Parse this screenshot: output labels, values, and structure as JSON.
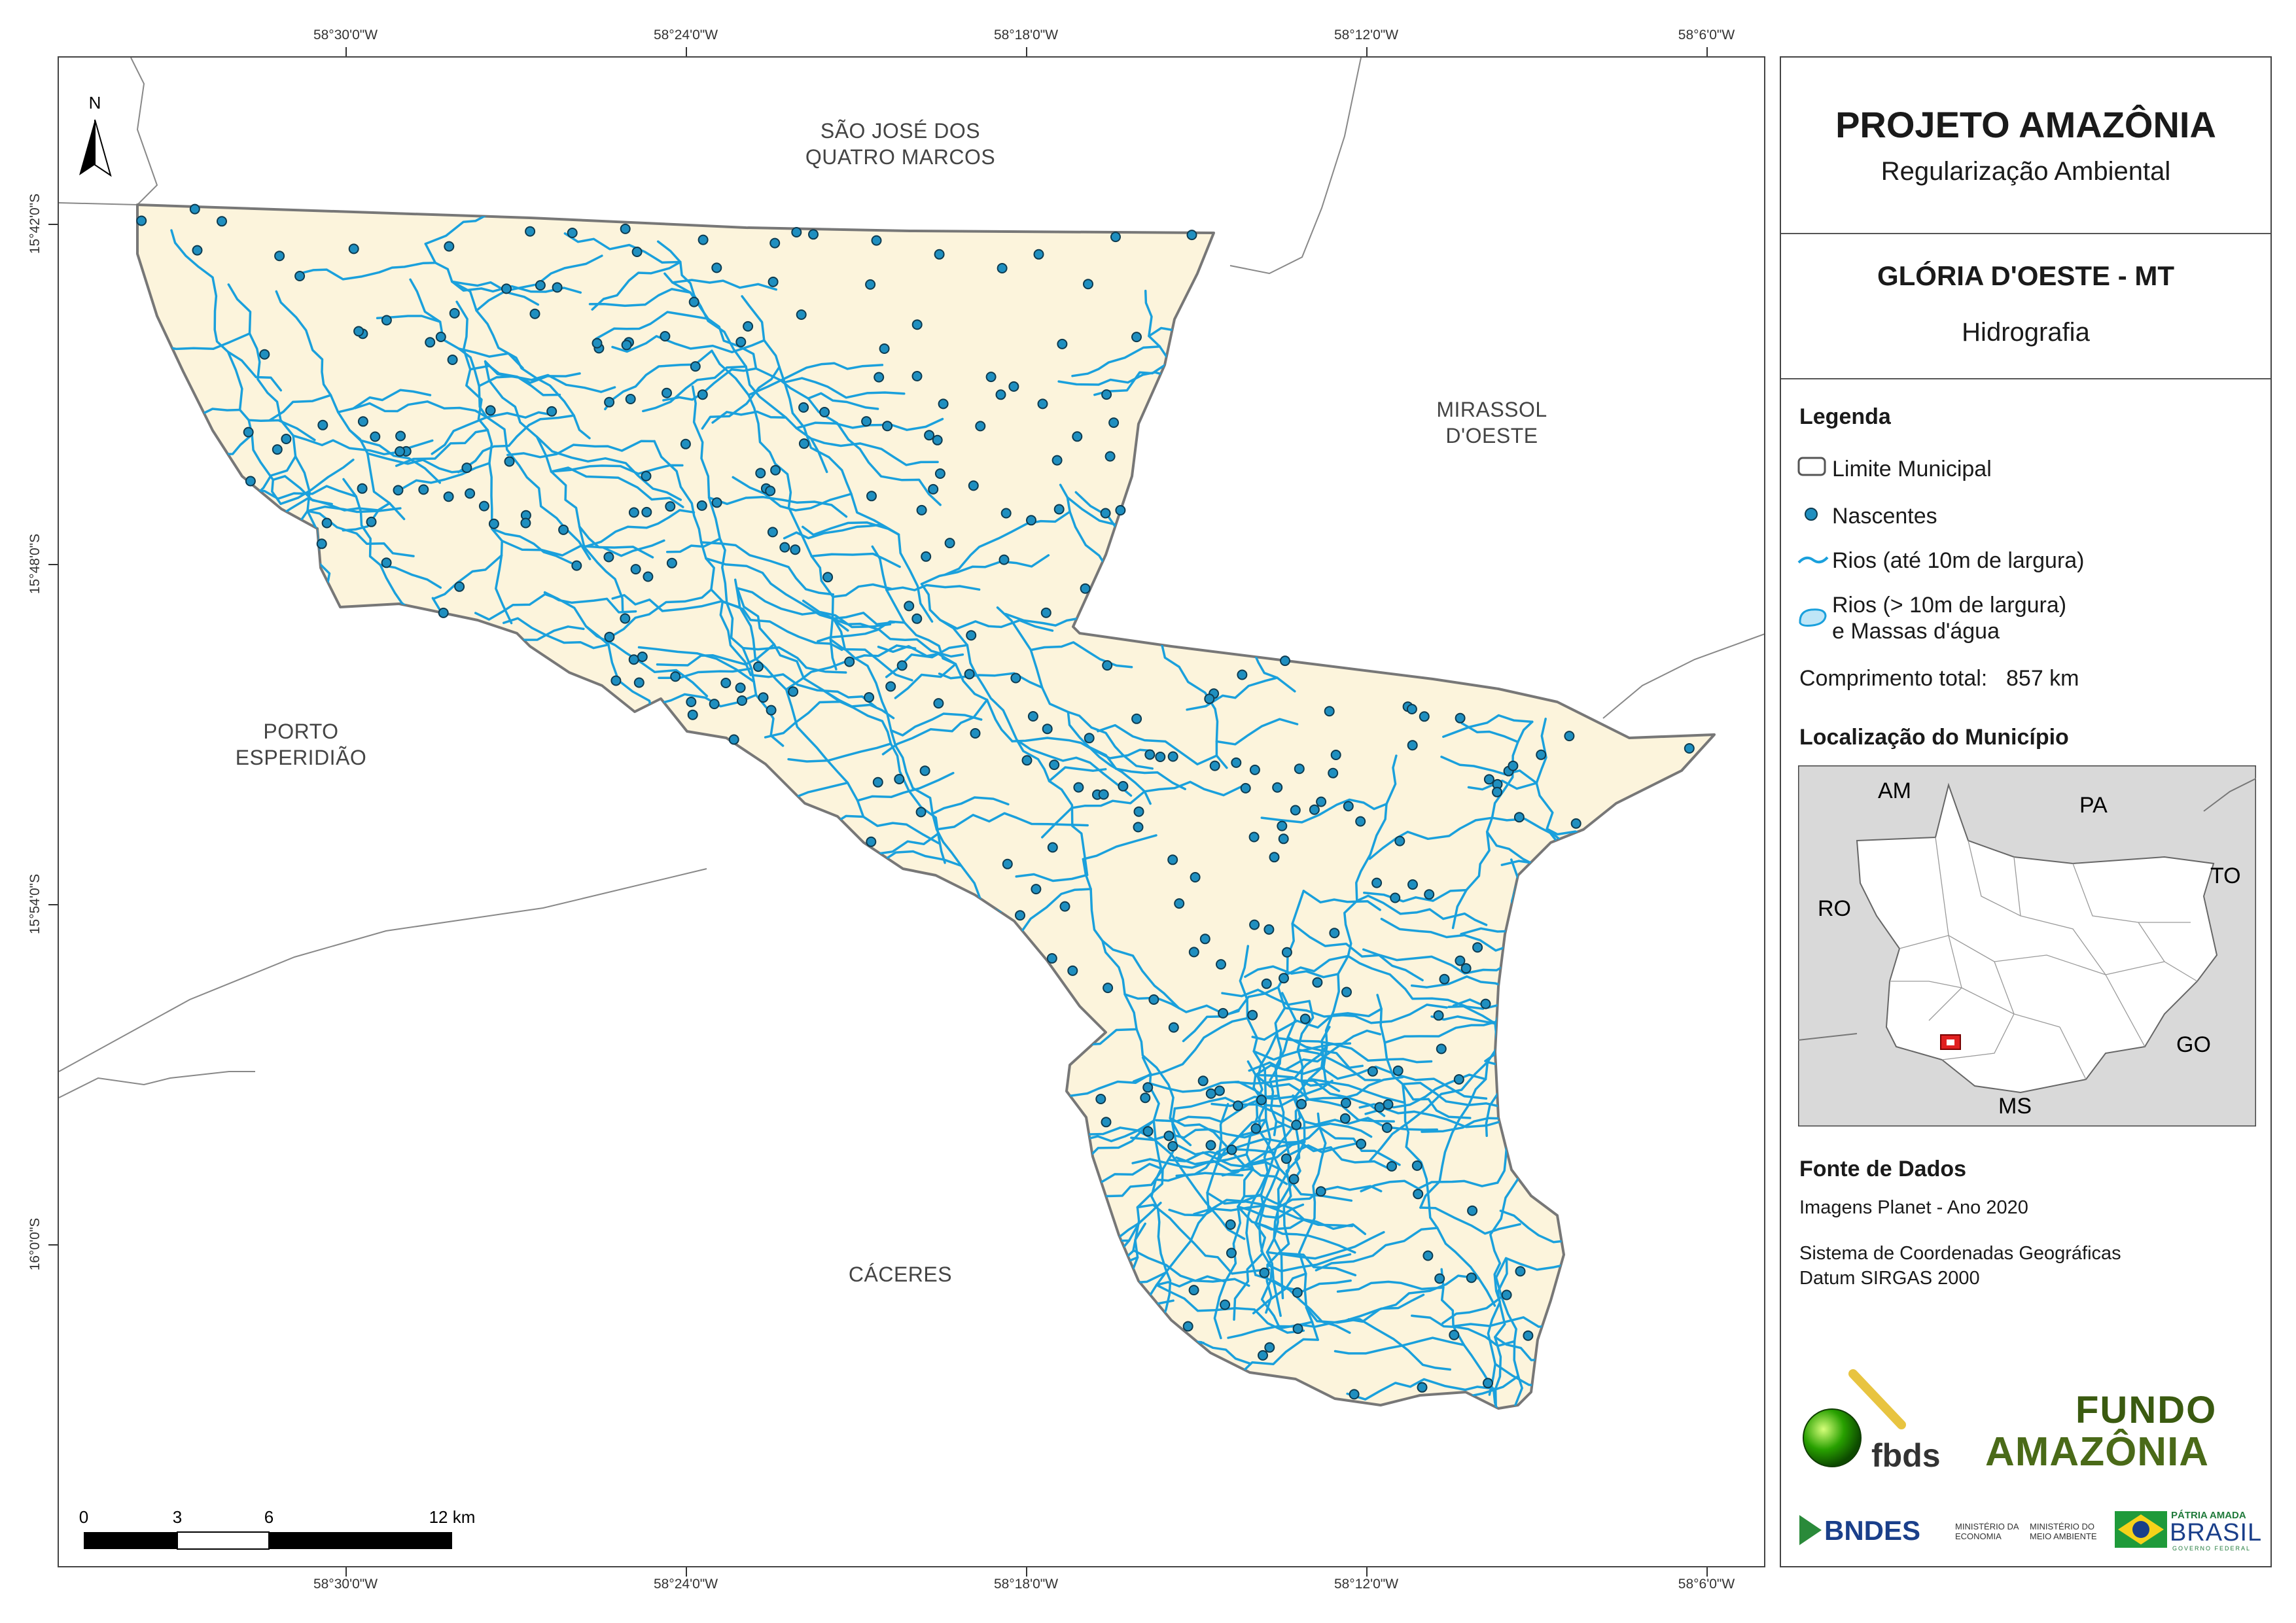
{
  "title": {
    "project": "PROJETO AMAZÔNIA",
    "subtitle": "Regularização Ambiental",
    "municipality": "GLÓRIA D'OESTE - MT",
    "theme": "Hidrografia"
  },
  "legend": {
    "heading": "Legenda",
    "items": [
      {
        "label": "Limite Municipal",
        "icon": "municipal-boundary-swatch"
      },
      {
        "label": "Nascentes",
        "icon": "spring-point-swatch",
        "color": "#1f8fc0"
      },
      {
        "label": "Rios (até 10m de largura)",
        "icon": "river-line-swatch",
        "color": "#1aa0dc"
      },
      {
        "label": "Rios (> 10m de largura)",
        "label2": "e Massas d'água",
        "icon": "water-body-swatch",
        "color": "#bfe6f7"
      }
    ],
    "total_length_label": "Comprimento total:",
    "total_length_value": "857 km"
  },
  "location": {
    "heading": "Localização do Município",
    "states": [
      "AM",
      "PA",
      "TO",
      "RO",
      "GO",
      "MS"
    ]
  },
  "sources": {
    "heading": "Fonte de Dados",
    "line1": "Imagens Planet - Ano 2020",
    "line2": "Sistema de Coordenadas Geográficas",
    "line3": "Datum SIRGAS 2000"
  },
  "logos": {
    "fbds": "fbds",
    "fundo_line1": "FUNDO",
    "fundo_line2": "AMAZÔNIA",
    "bndes": "BNDES",
    "min_economia": "MINISTÉRIO DA\nECONOMIA",
    "min_ambiente": "MINISTÉRIO DO\nMEIO AMBIENTE",
    "patria1": "PÁTRIA AMADA",
    "patria2": "BRASIL",
    "patria3": "GOVERNO FEDERAL"
  },
  "neighbors": {
    "north": "SÃO JOSÉ DOS\nQUATRO MARCOS",
    "east": "MIRASSOL\nD'OESTE",
    "west": "PORTO\nESPERIDIÃO",
    "south": "CÁCERES"
  },
  "graticule": {
    "longitudes": [
      "58°30'0\"W",
      "58°24'0\"W",
      "58°18'0\"W",
      "58°12'0\"W",
      "58°6'0\"W"
    ],
    "latitudes": [
      "15°42'0\"S",
      "15°48'0\"S",
      "15°54'0\"S",
      "16°0'0\"S"
    ]
  },
  "scale_bar": {
    "labels": [
      "0",
      "3",
      "6",
      "12 km"
    ],
    "values": [
      0,
      3,
      6,
      12
    ]
  },
  "north_arrow": "N",
  "colors": {
    "municipality_fill": "#fcf4dc",
    "boundary": "#777777",
    "river": "#1aa0dc",
    "spring": "#1f8fc0",
    "location_highlight": "#e02020"
  }
}
